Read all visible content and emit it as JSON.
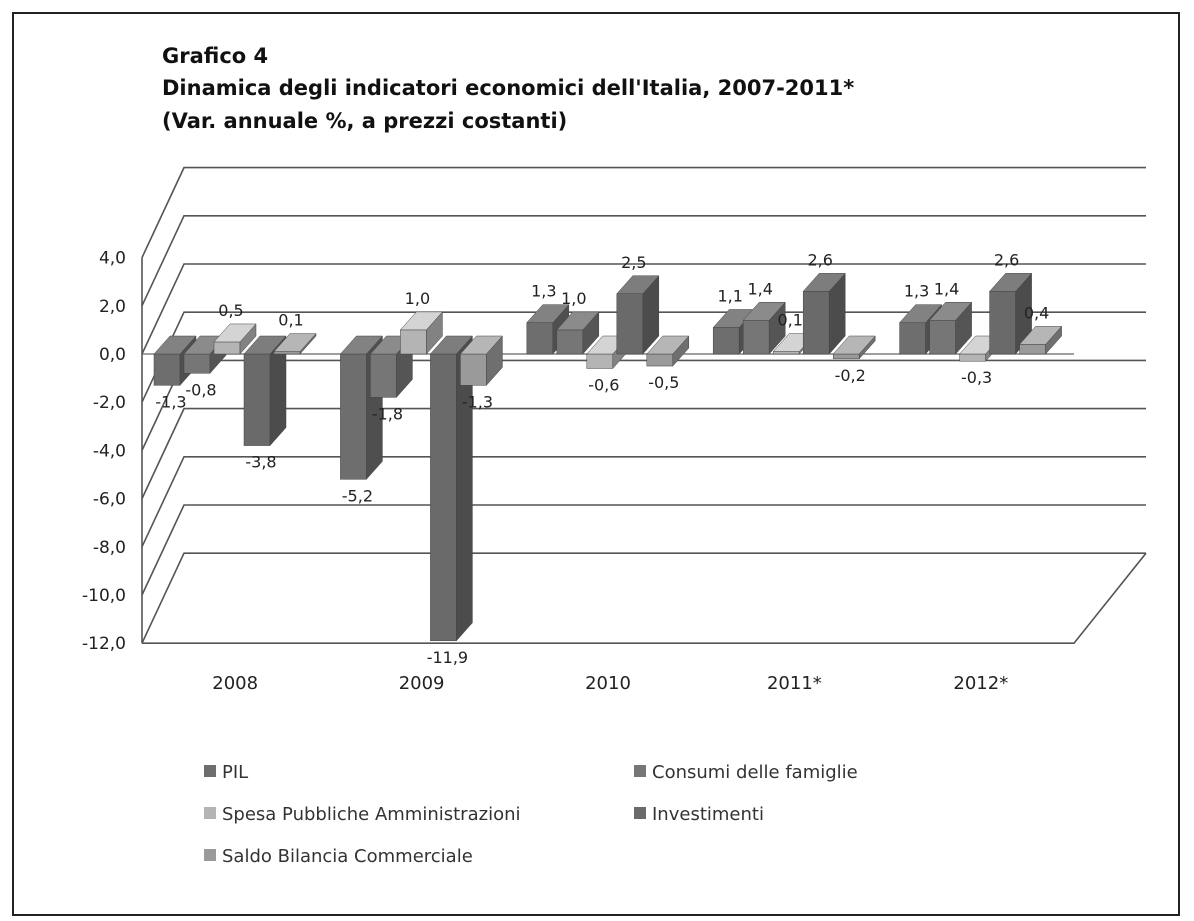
{
  "title": {
    "line1": "Grafico 4",
    "line2": "Dinamica degli indicatori economici dell'Italia, 2007-2011*",
    "line3": "(Var. annuale %, a prezzi costanti)"
  },
  "chart_data": {
    "type": "bar",
    "style": "3d-clustered",
    "categories": [
      "2008",
      "2009",
      "2010",
      "2011*",
      "2012*"
    ],
    "series": [
      {
        "name": "PIL",
        "values": [
          -1.3,
          -5.2,
          1.3,
          1.1,
          1.3
        ],
        "color": "#6e6e6e"
      },
      {
        "name": "Consumi delle famiglie",
        "values": [
          -0.8,
          -1.8,
          1.0,
          1.4,
          1.4
        ],
        "color": "#767676"
      },
      {
        "name": "Spesa Pubbliche Amministrazioni",
        "values": [
          0.5,
          1.0,
          -0.6,
          0.1,
          -0.3
        ],
        "color": "#b4b4b4"
      },
      {
        "name": "Investimenti",
        "values": [
          -3.8,
          -11.9,
          2.5,
          2.6,
          2.6
        ],
        "color": "#6a6a6a"
      },
      {
        "name": "Saldo Bilancia Commerciale",
        "values": [
          0.1,
          -1.3,
          -0.5,
          -0.2,
          0.4
        ],
        "color": "#9a9a9a"
      }
    ],
    "data_labels": [
      [
        "-1,3",
        "-0,8",
        "0,5",
        "-3,8",
        "0,1"
      ],
      [
        "-5,2",
        "-1,8",
        "1,0",
        "-11,9",
        "-1,3"
      ],
      [
        "1,3",
        "1,0",
        "-0,6",
        "2,5",
        "-0,5"
      ],
      [
        "1,1",
        "1,4",
        "0,1",
        "2,6",
        "-0,2"
      ],
      [
        "1,3",
        "1,4",
        "-0,3",
        "2,6",
        "0,4"
      ]
    ],
    "ytick_labels": [
      "4,0",
      "2,0",
      "0,0",
      "-2,0",
      "-4,0",
      "-6,0",
      "-8,0",
      "-10,0",
      "-12,0"
    ],
    "ylim": [
      -12,
      4
    ],
    "grid": true,
    "legend_position": "bottom"
  }
}
